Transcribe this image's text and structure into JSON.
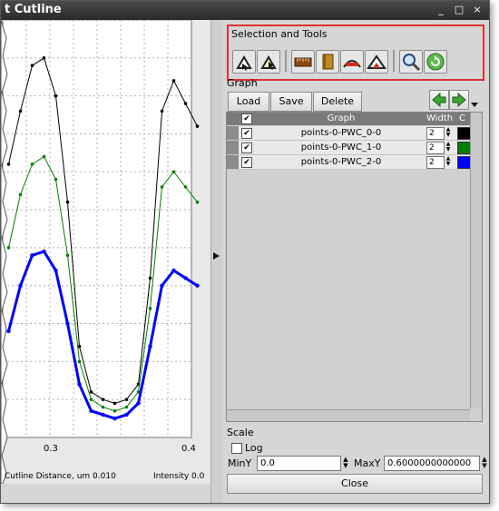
{
  "window": {
    "title": "t Cutline",
    "controls": [
      "_",
      "□",
      "×"
    ]
  },
  "plot": {
    "x_ticks": [
      "0.3",
      "0.4"
    ],
    "footer_left": "Cutline Distance, um  0.010",
    "footer_right": "Intensity  0.0"
  },
  "chart_data": {
    "type": "line",
    "x": [
      0.245,
      0.255,
      0.265,
      0.275,
      0.285,
      0.295,
      0.305,
      0.315,
      0.325,
      0.335,
      0.345,
      0.355,
      0.365,
      0.375,
      0.385,
      0.395,
      0.405
    ],
    "series": [
      {
        "name": "points-0-PWC_0-0",
        "color": "#000000",
        "values": [
          0.36,
          0.43,
          0.49,
          0.5,
          0.45,
          0.31,
          0.12,
          0.06,
          0.05,
          0.045,
          0.05,
          0.07,
          0.21,
          0.43,
          0.47,
          0.44,
          0.41
        ]
      },
      {
        "name": "points-0-PWC_1-0",
        "color": "#008000",
        "values": [
          0.25,
          0.32,
          0.36,
          0.37,
          0.34,
          0.24,
          0.1,
          0.05,
          0.04,
          0.035,
          0.04,
          0.06,
          0.17,
          0.33,
          0.35,
          0.33,
          0.31
        ]
      },
      {
        "name": "points-0-PWC_2-0",
        "color": "#0000ff",
        "values": [
          0.14,
          0.2,
          0.24,
          0.245,
          0.22,
          0.15,
          0.07,
          0.035,
          0.03,
          0.025,
          0.03,
          0.045,
          0.12,
          0.2,
          0.22,
          0.21,
          0.2
        ]
      }
    ],
    "xlim": [
      0.24,
      0.4
    ],
    "ylim": [
      0.0,
      0.55
    ],
    "grid": true
  },
  "selection_tools": {
    "label": "Selection and Tools",
    "tools": [
      "select-cutline-icon",
      "move-cutline-icon",
      "ruler-icon",
      "book-icon",
      "profile-icon",
      "peak-icon",
      "zoom-icon",
      "refresh-icon"
    ]
  },
  "graph": {
    "label": "Graph",
    "buttons": {
      "load": "Load",
      "save": "Save",
      "delete": "Delete"
    },
    "table": {
      "headers": {
        "graph": "Graph",
        "width": "Width",
        "color": "C"
      },
      "rows": [
        {
          "name": "points-0-PWC_0-0",
          "width": "2",
          "color": "#000000"
        },
        {
          "name": "points-0-PWC_1-0",
          "width": "2",
          "color": "#008000"
        },
        {
          "name": "points-0-PWC_2-0",
          "width": "2",
          "color": "#0000ff"
        }
      ]
    }
  },
  "scale": {
    "label": "Scale",
    "log_label": "Log",
    "miny_label": "MinY",
    "miny_value": "0.0",
    "maxy_label": "MaxY",
    "maxy_value": "0.6000000000000"
  },
  "close_label": "Close"
}
